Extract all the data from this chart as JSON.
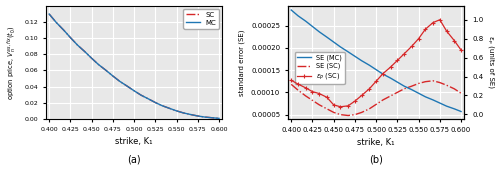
{
  "K1": [
    0.4,
    0.408,
    0.417,
    0.425,
    0.433,
    0.442,
    0.45,
    0.458,
    0.467,
    0.475,
    0.483,
    0.492,
    0.5,
    0.508,
    0.517,
    0.525,
    0.533,
    0.542,
    0.55,
    0.558,
    0.567,
    0.575,
    0.583,
    0.592,
    0.6
  ],
  "MC_price": [
    0.1295,
    0.1195,
    0.1098,
    0.1005,
    0.0916,
    0.0831,
    0.075,
    0.0673,
    0.06,
    0.0531,
    0.0466,
    0.0405,
    0.0349,
    0.0296,
    0.0248,
    0.0204,
    0.0165,
    0.0131,
    0.0101,
    0.0076,
    0.0055,
    0.0038,
    0.0025,
    0.0016,
    0.0009
  ],
  "SC_price": [
    0.1295,
    0.1195,
    0.1098,
    0.1005,
    0.0916,
    0.0831,
    0.075,
    0.0673,
    0.06,
    0.0531,
    0.0466,
    0.0405,
    0.0349,
    0.0296,
    0.0248,
    0.0204,
    0.0165,
    0.0131,
    0.0101,
    0.0076,
    0.0055,
    0.0038,
    0.0025,
    0.0016,
    0.0009
  ],
  "SE_MC": [
    0.000285,
    0.000272,
    0.00026,
    0.000248,
    0.000236,
    0.000224,
    0.000213,
    0.000202,
    0.000191,
    0.000181,
    0.000171,
    0.000161,
    0.000151,
    0.000141,
    0.000132,
    0.000123,
    0.000114,
    0.000106,
    9.8e-05,
    9e-05,
    8.3e-05,
    7.6e-05,
    6.9e-05,
    6.3e-05,
    5.7e-05
  ],
  "SE_SC": [
    0.000118,
    0.000105,
    9.2e-05,
    8.2e-05,
    7.2e-05,
    6.3e-05,
    5.5e-05,
    5e-05,
    4.8e-05,
    5e-05,
    5.5e-05,
    6.3e-05,
    7.3e-05,
    8.3e-05,
    9.2e-05,
    0.0001,
    0.000108,
    0.000114,
    0.00012,
    0.000124,
    0.000126,
    0.000122,
    0.000116,
    0.000108,
    9.8e-05
  ],
  "ep_SC": [
    0.36,
    0.32,
    0.28,
    0.24,
    0.22,
    0.18,
    0.1,
    0.08,
    0.09,
    0.14,
    0.2,
    0.27,
    0.35,
    0.43,
    0.5,
    0.57,
    0.64,
    0.72,
    0.8,
    0.9,
    0.97,
    1.0,
    0.88,
    0.78,
    0.68
  ],
  "price_ylim": [
    0.0,
    0.14
  ],
  "price_yticks": [
    0.0,
    0.02,
    0.04,
    0.06,
    0.08,
    0.1,
    0.12
  ],
  "se_ylim": [
    4e-05,
    0.000295
  ],
  "se_yticks": [
    5e-05,
    0.0001,
    0.00015,
    0.0002,
    0.00025
  ],
  "ep_ylim": [
    -0.05,
    1.15
  ],
  "ep_yticks": [
    0.0,
    0.2,
    0.4,
    0.6,
    0.8,
    1.0
  ],
  "xlim": [
    0.396,
    0.604
  ],
  "xticks": [
    0.4,
    0.425,
    0.45,
    0.475,
    0.5,
    0.525,
    0.55,
    0.575,
    0.6
  ],
  "xlabel": "strike, K₁",
  "ylabel_left_a": "option price, $V_n^{as,fix}(t_0)$",
  "ylabel_right_b": "εₚ (units of SE)",
  "ylabel_left_b": "standard error (SE)",
  "color_MC": "#1f77b4",
  "color_SC": "#d62728",
  "bg_color": "#e8e8e8",
  "grid_color": "white",
  "label_a": "(a)",
  "label_b": "(b)"
}
